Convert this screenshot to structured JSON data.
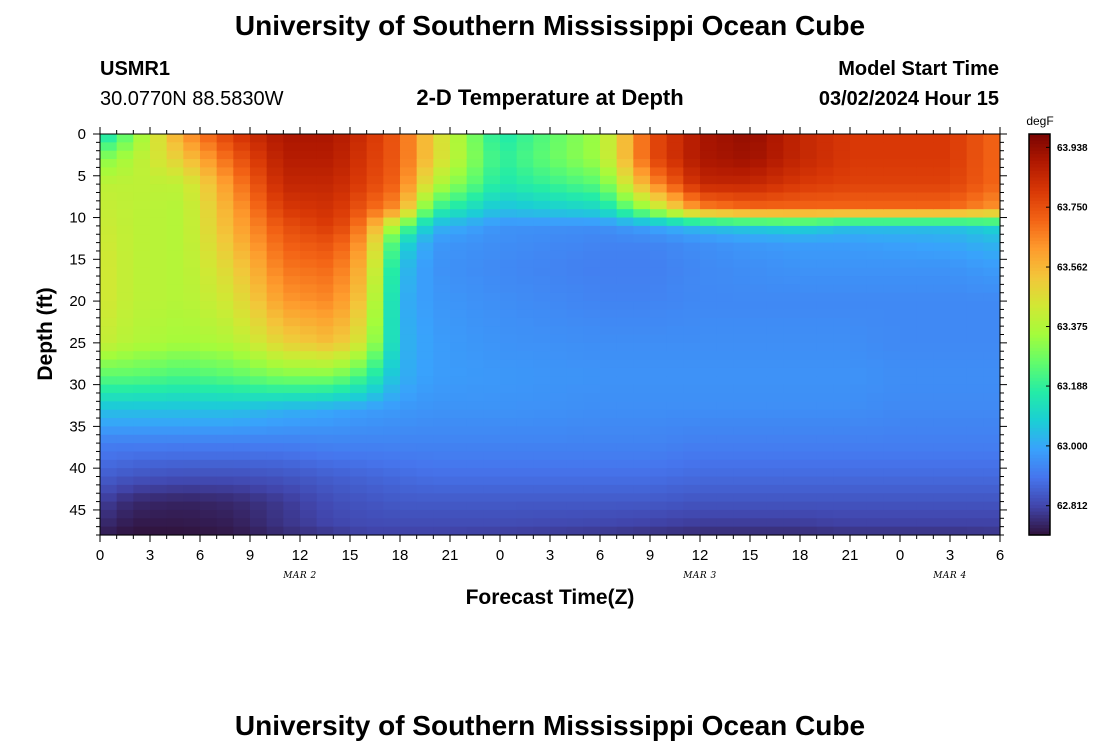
{
  "header": {
    "title": "University of Southern Mississippi Ocean Cube",
    "station_id": "USMR1",
    "station_coords": "30.0770N  88.5830W",
    "plot_title": "2-D Temperature at Depth",
    "model_label": "Model Start Time",
    "model_time": "03/02/2024 Hour 15"
  },
  "footer": {
    "title": "University of Southern Mississippi Ocean Cube"
  },
  "chart_data": {
    "type": "heatmap",
    "title": "2-D Temperature at Depth",
    "xlabel": "Forecast Time(Z)",
    "ylabel": "Depth (ft)",
    "x_ticks": [
      "0",
      "3",
      "6",
      "9",
      "12",
      "15",
      "18",
      "21",
      "0",
      "3",
      "6",
      "9",
      "12",
      "15",
      "18",
      "21",
      "0",
      "3",
      "6"
    ],
    "x_range_hours": [
      0,
      54
    ],
    "date_labels": [
      {
        "label": "MAR 2",
        "hour": 12
      },
      {
        "label": "MAR 3",
        "hour": 36
      },
      {
        "label": "MAR 4",
        "hour": 51
      }
    ],
    "y_ticks": [
      "0",
      "5",
      "10",
      "15",
      "20",
      "25",
      "30",
      "35",
      "40",
      "45"
    ],
    "ylim": [
      0,
      48
    ],
    "y_inverted": true,
    "colorbar": {
      "unit": "degF",
      "min": 62.72,
      "max": 63.98,
      "ticks": [
        "63.938",
        "63.750",
        "63.562",
        "63.375",
        "63.188",
        "63.000",
        "62.812"
      ],
      "colormap": [
        "#30123b",
        "#4145ab",
        "#4675ed",
        "#39a2fc",
        "#1bcfd4",
        "#24eca6",
        "#61fc6c",
        "#a4fc3b",
        "#d1e834",
        "#f3c63a",
        "#fe9b2d",
        "#f36315",
        "#d93806",
        "#b11901",
        "#7a0402"
      ]
    },
    "grid": false,
    "field_description": "Time 0-54 h (columns every 1 h), depth 0-48 ft (rows every 1 ft). Values in degF.",
    "time_knots": [
      0,
      2,
      5,
      8,
      11,
      14,
      16,
      18,
      20,
      24,
      30,
      33,
      36,
      39,
      42,
      45,
      48,
      51,
      54
    ],
    "depth_knots": [
      0,
      3,
      6,
      9,
      11,
      13,
      16,
      20,
      25,
      29,
      33,
      37,
      41,
      44,
      47,
      48
    ],
    "values": [
      [
        63.1,
        63.3,
        63.62,
        63.8,
        63.9,
        63.9,
        63.82,
        63.72,
        63.5,
        63.15,
        63.35,
        63.75,
        63.9,
        63.94,
        63.85,
        63.8,
        63.8,
        63.8,
        63.7
      ],
      [
        63.3,
        63.38,
        63.52,
        63.72,
        63.88,
        63.88,
        63.8,
        63.72,
        63.5,
        63.18,
        63.35,
        63.75,
        63.9,
        63.92,
        63.85,
        63.8,
        63.8,
        63.8,
        63.7
      ],
      [
        63.4,
        63.4,
        63.4,
        63.65,
        63.85,
        63.85,
        63.78,
        63.7,
        63.4,
        63.15,
        63.25,
        63.62,
        63.85,
        63.85,
        63.8,
        63.78,
        63.78,
        63.78,
        63.7
      ],
      [
        63.42,
        63.4,
        63.38,
        63.6,
        63.8,
        63.82,
        63.72,
        63.62,
        63.2,
        63.05,
        63.1,
        63.35,
        63.65,
        63.7,
        63.7,
        63.7,
        63.7,
        63.7,
        63.62
      ],
      [
        63.43,
        63.4,
        63.38,
        63.58,
        63.75,
        63.8,
        63.65,
        63.3,
        63.03,
        62.96,
        62.95,
        62.99,
        63.05,
        63.08,
        63.1,
        63.05,
        63.05,
        63.05,
        63.1
      ],
      [
        63.44,
        63.4,
        63.38,
        63.55,
        63.72,
        63.75,
        63.6,
        63.12,
        62.97,
        62.95,
        62.93,
        62.93,
        62.95,
        62.97,
        62.98,
        62.98,
        62.99,
        63.0,
        63.03
      ],
      [
        63.45,
        63.4,
        63.38,
        63.5,
        63.68,
        63.7,
        63.55,
        63.05,
        62.96,
        62.94,
        62.92,
        62.92,
        62.94,
        62.95,
        62.96,
        62.96,
        62.96,
        62.96,
        62.98
      ],
      [
        63.45,
        63.4,
        63.38,
        63.45,
        63.62,
        63.65,
        63.5,
        63.02,
        62.97,
        62.95,
        62.93,
        62.93,
        62.94,
        62.94,
        62.94,
        62.94,
        62.94,
        62.94,
        62.94
      ],
      [
        63.42,
        63.38,
        63.35,
        63.38,
        63.5,
        63.55,
        63.42,
        63.03,
        62.98,
        62.96,
        62.95,
        62.95,
        62.95,
        62.95,
        62.95,
        62.95,
        62.94,
        62.94,
        62.94
      ],
      [
        63.25,
        63.25,
        63.22,
        63.25,
        63.3,
        63.3,
        63.2,
        63.02,
        62.98,
        62.97,
        62.96,
        62.96,
        62.96,
        62.96,
        62.96,
        62.96,
        62.95,
        62.95,
        62.95
      ],
      [
        63.05,
        63.05,
        63.05,
        63.05,
        63.02,
        63.0,
        62.98,
        62.97,
        62.96,
        62.96,
        62.95,
        62.95,
        62.95,
        62.95,
        62.95,
        62.95,
        62.94,
        62.94,
        62.94
      ],
      [
        62.92,
        62.92,
        62.92,
        62.92,
        62.92,
        62.93,
        62.93,
        62.93,
        62.93,
        62.93,
        62.93,
        62.93,
        62.92,
        62.92,
        62.92,
        62.92,
        62.92,
        62.92,
        62.92
      ],
      [
        62.86,
        62.84,
        62.83,
        62.83,
        62.84,
        62.86,
        62.87,
        62.88,
        62.89,
        62.89,
        62.89,
        62.89,
        62.88,
        62.88,
        62.88,
        62.88,
        62.88,
        62.88,
        62.88
      ],
      [
        62.8,
        62.76,
        62.75,
        62.76,
        62.79,
        62.83,
        62.84,
        62.85,
        62.85,
        62.85,
        62.85,
        62.85,
        62.84,
        62.84,
        62.84,
        62.84,
        62.84,
        62.84,
        62.84
      ],
      [
        62.76,
        62.73,
        62.73,
        62.74,
        62.78,
        62.81,
        62.82,
        62.82,
        62.82,
        62.82,
        62.81,
        62.8,
        62.79,
        62.79,
        62.79,
        62.8,
        62.8,
        62.8,
        62.8
      ],
      [
        62.74,
        62.72,
        62.72,
        62.73,
        62.76,
        62.78,
        62.8,
        62.8,
        62.8,
        62.79,
        62.78,
        62.77,
        62.76,
        62.76,
        62.76,
        62.77,
        62.77,
        62.77,
        62.78
      ]
    ]
  }
}
